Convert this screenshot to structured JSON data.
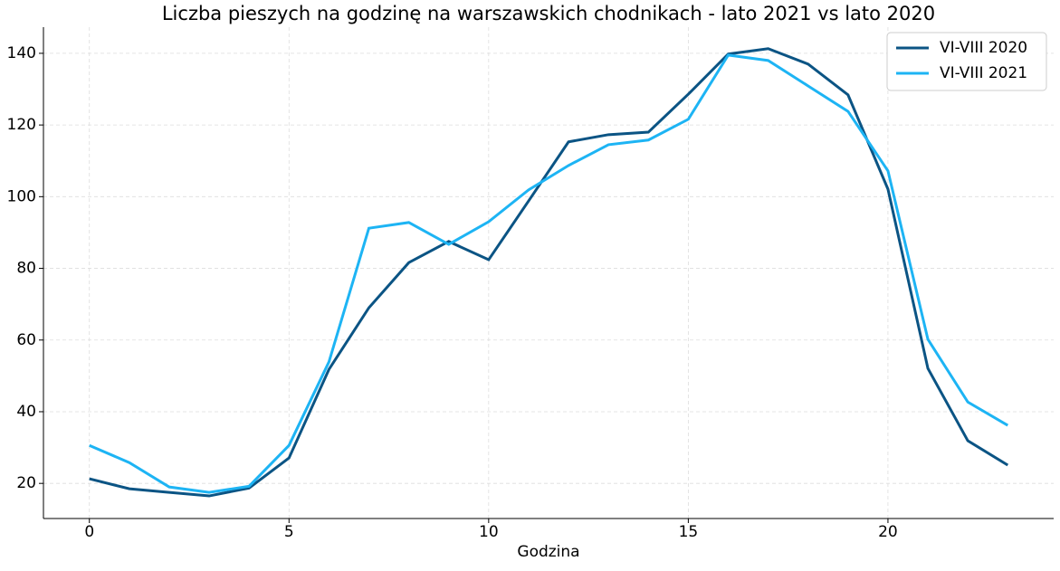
{
  "chart_data": {
    "type": "line",
    "title": "Liczba pieszych na godzinę na warszawskich chodnikach - lato 2021 vs lato 2020",
    "xlabel": "Godzina",
    "x": [
      0,
      1,
      2,
      3,
      4,
      5,
      6,
      7,
      8,
      9,
      10,
      11,
      12,
      13,
      14,
      15,
      16,
      17,
      18,
      19,
      20,
      21,
      22,
      23
    ],
    "series": [
      {
        "name": "VI-VIII 2020",
        "color": "#0b5484",
        "values": [
          21.3,
          18.5,
          17.5,
          16.5,
          18.7,
          27.1,
          51.8,
          69,
          81.6,
          87.5,
          82.4,
          98.8,
          115.3,
          117.3,
          118,
          128.6,
          139.8,
          141.3,
          137,
          128.4,
          102.1,
          52.1,
          31.9,
          25.1
        ]
      },
      {
        "name": "VI-VIII 2021",
        "color": "#1db4f4",
        "values": [
          30.6,
          25.8,
          19,
          17.5,
          19.2,
          30.6,
          53.9,
          91.2,
          92.8,
          86.7,
          93,
          101.9,
          108.7,
          114.5,
          115.8,
          121.6,
          139.5,
          138,
          130.9,
          123.8,
          107.2,
          60.2,
          42.7,
          36.2
        ]
      }
    ],
    "xlim": [
      -1.15,
      24.15
    ],
    "xticks": [
      0,
      5,
      10,
      15,
      20
    ],
    "ylim": [
      10.2,
      147.3
    ],
    "yticks": [
      20,
      40,
      60,
      80,
      100,
      120,
      140
    ],
    "grid": true,
    "legend": "upper right"
  }
}
